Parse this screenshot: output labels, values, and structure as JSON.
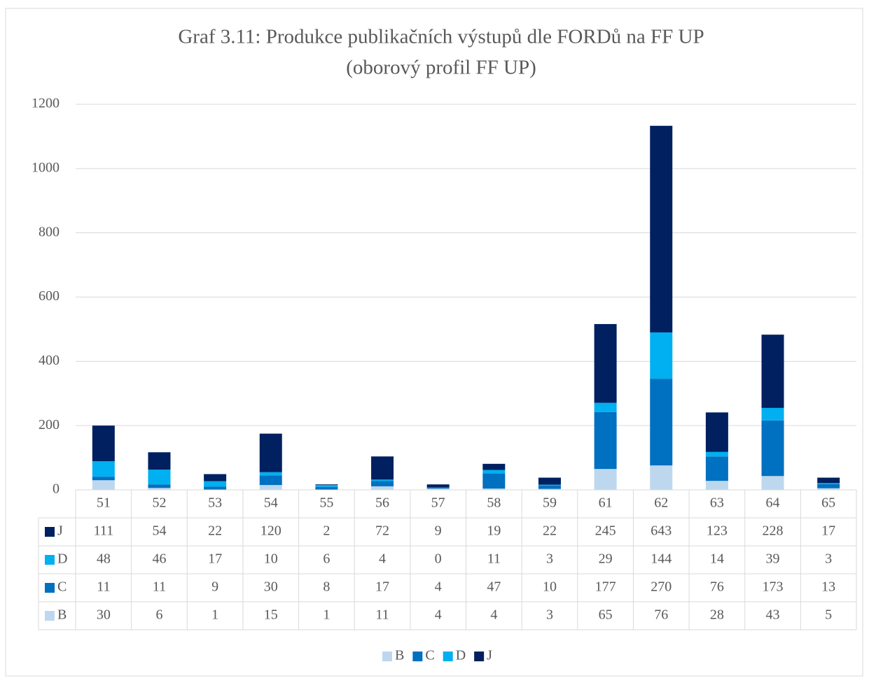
{
  "chart_data": {
    "type": "stacked_bar",
    "title": "Graf 3.11: Produkce publikačních výstupů dle FORDů na FF UP",
    "subtitle": "(oborový profil FF UP)",
    "categories": [
      "51",
      "52",
      "53",
      "54",
      "55",
      "56",
      "57",
      "58",
      "59",
      "61",
      "62",
      "63",
      "64",
      "65"
    ],
    "series": [
      {
        "name": "B",
        "color": "#bdd7ee",
        "values": [
          30,
          6,
          1,
          15,
          1,
          11,
          4,
          4,
          3,
          65,
          76,
          28,
          43,
          5
        ]
      },
      {
        "name": "C",
        "color": "#0070c0",
        "values": [
          11,
          11,
          9,
          30,
          8,
          17,
          4,
          47,
          10,
          177,
          270,
          76,
          173,
          13
        ]
      },
      {
        "name": "D",
        "color": "#00b0f0",
        "values": [
          48,
          46,
          17,
          10,
          6,
          4,
          0,
          11,
          3,
          29,
          144,
          14,
          39,
          3
        ]
      },
      {
        "name": "J",
        "color": "#002060",
        "values": [
          111,
          54,
          22,
          120,
          2,
          72,
          9,
          19,
          22,
          245,
          643,
          123,
          228,
          17
        ]
      }
    ],
    "ylim": [
      0,
      1200
    ],
    "yticks": [
      0,
      200,
      400,
      600,
      800,
      1000,
      1200
    ],
    "grid": true,
    "legend": "bottom",
    "data_table": true
  }
}
